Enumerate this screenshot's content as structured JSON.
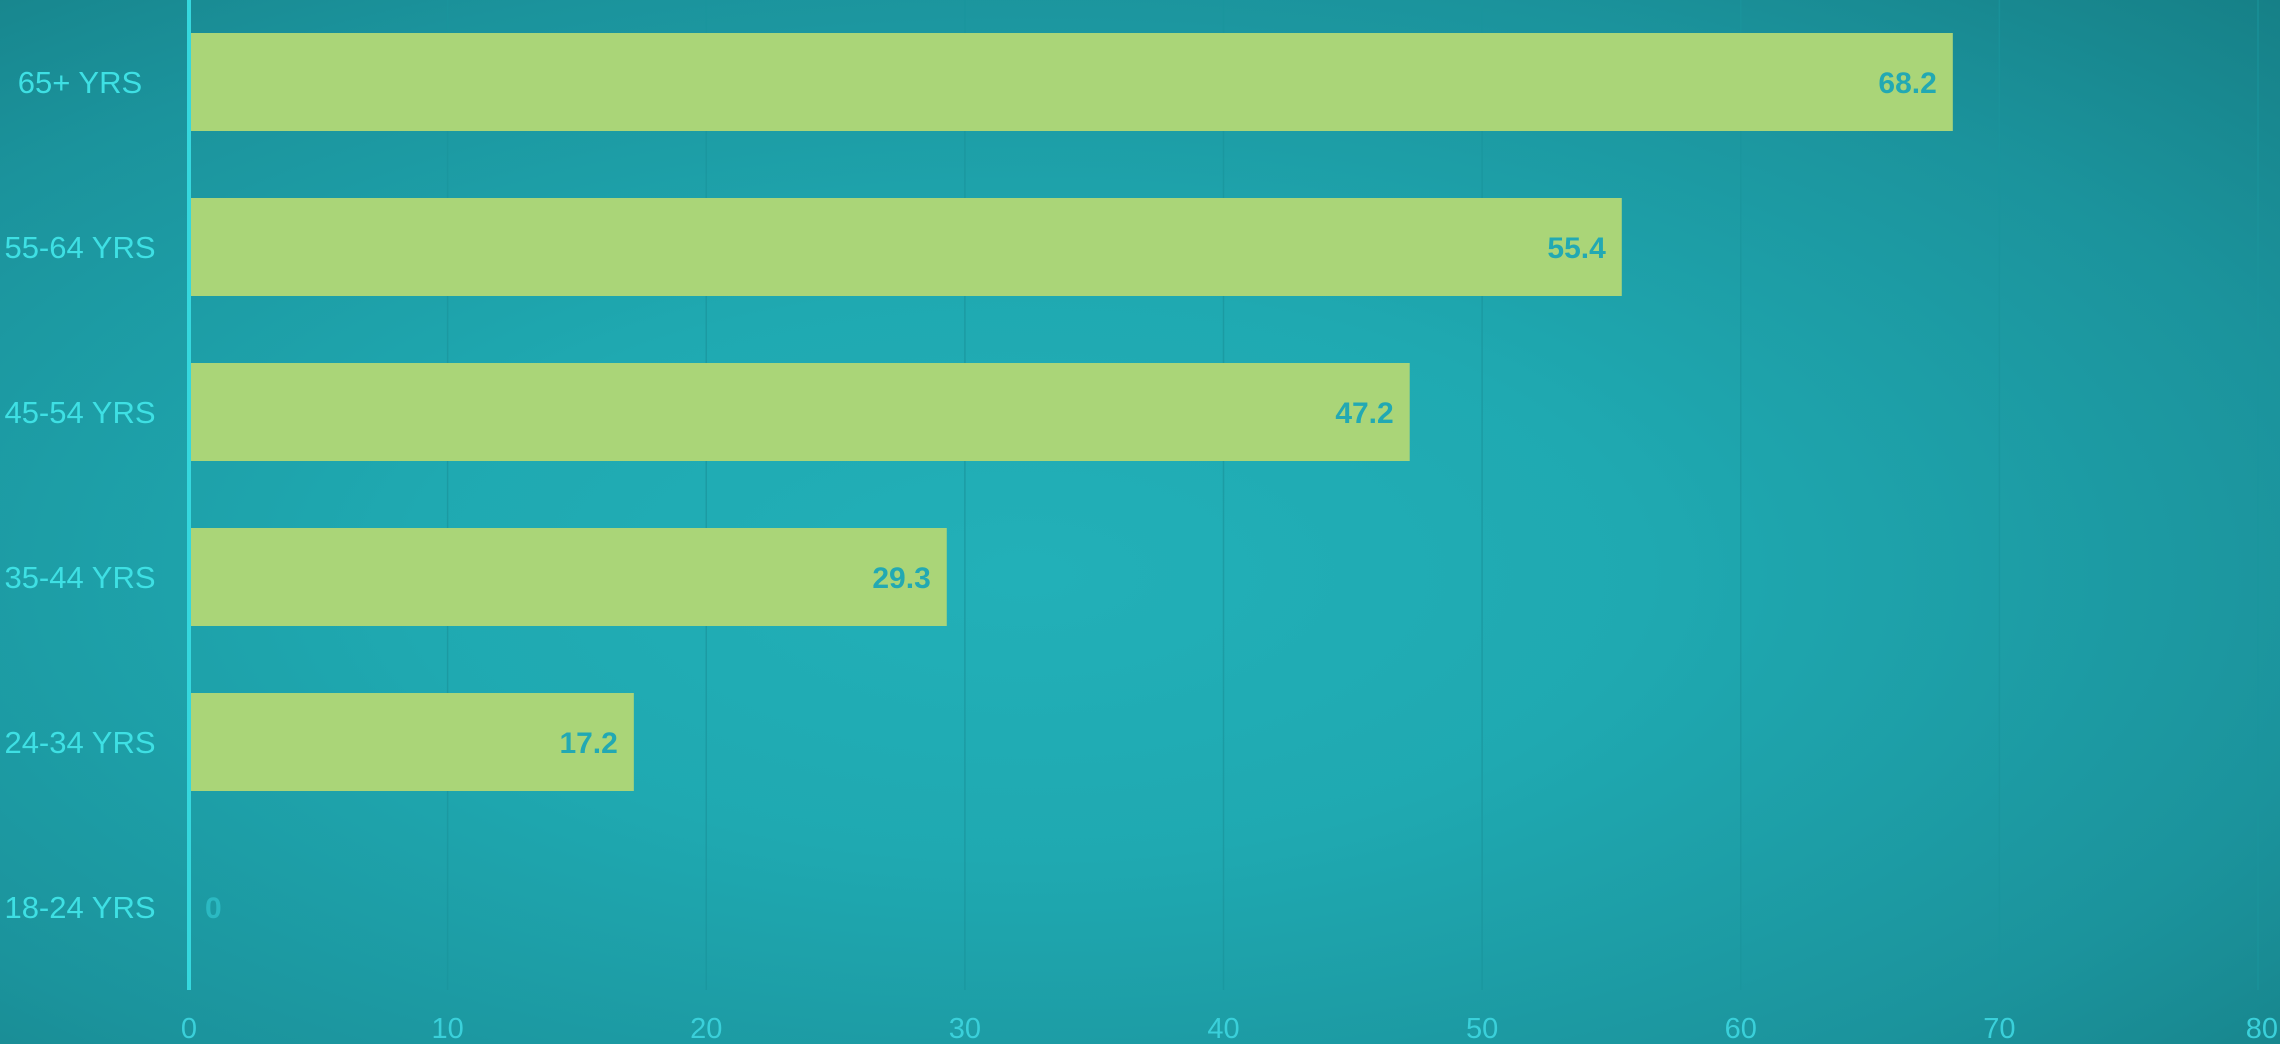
{
  "chart_data": {
    "type": "bar",
    "orientation": "horizontal",
    "title": "",
    "xlabel": "",
    "ylabel": "",
    "categories": [
      "65+ YRS",
      "55-64 YRS",
      "45-54 YRS",
      "35-44 YRS",
      "24-34 YRS",
      "18-24 YRS"
    ],
    "values": [
      68.2,
      55.4,
      47.2,
      29.3,
      17.2,
      0
    ],
    "value_labels": [
      "68.2",
      "55.4",
      "47.2",
      "29.3",
      "17.2",
      "0"
    ],
    "xlim": [
      0,
      80
    ],
    "xticks": [
      0,
      10,
      20,
      30,
      40,
      50,
      60,
      70,
      80
    ],
    "grid": "vertical",
    "legend": "none"
  },
  "colors": {
    "background": "#1fa9b1",
    "bar": "#aad578",
    "axis_line": "#35d8de",
    "gridline": "#1a959d",
    "category_label": "#3ee0e4",
    "tick_label": "#3ad0da",
    "value_label": "#22a9b3",
    "zero_value_label": "#2bb9c2"
  }
}
